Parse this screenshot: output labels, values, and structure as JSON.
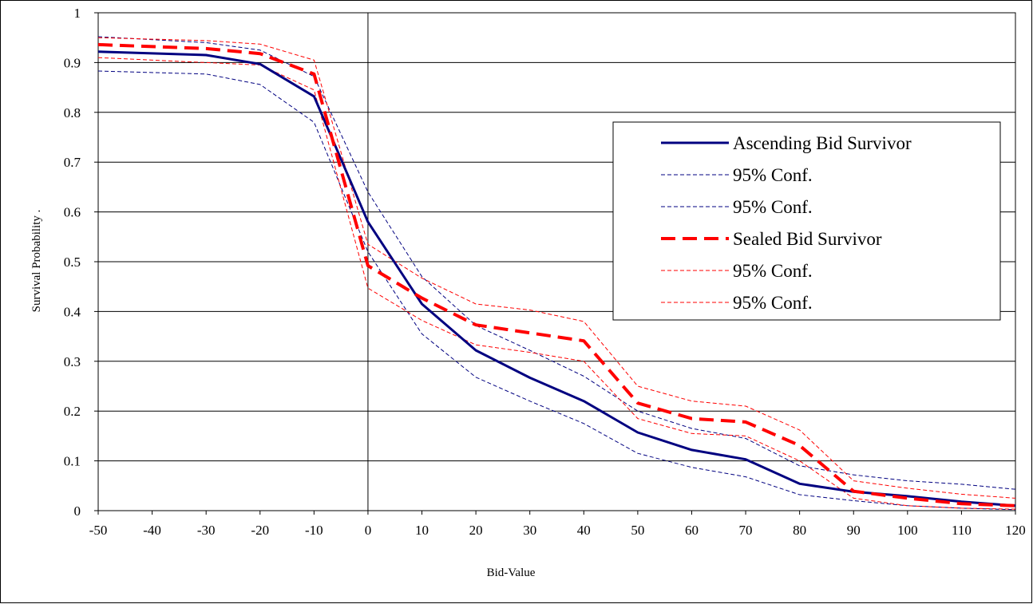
{
  "chart_data": {
    "type": "line",
    "xlabel": "Bid-Value",
    "ylabel": "Survival Probability     .",
    "xlim": [
      -50,
      120
    ],
    "ylim": [
      0,
      1
    ],
    "x_ticks": [
      "-50",
      "-40",
      "-30",
      "-20",
      "-10",
      "0",
      "10",
      "20",
      "30",
      "40",
      "50",
      "60",
      "70",
      "80",
      "90",
      "100",
      "110",
      "120"
    ],
    "y_ticks": [
      "0",
      "0.1",
      "0.2",
      "0.3",
      "0.4",
      "0.5",
      "0.6",
      "0.7",
      "0.8",
      "0.9",
      "1"
    ],
    "grid": "horizontal",
    "legend_placement": "right",
    "x": [
      -50,
      -30,
      -20,
      -10,
      0,
      10,
      20,
      30,
      40,
      50,
      60,
      70,
      80,
      90,
      100,
      110,
      120
    ],
    "series": [
      {
        "name": "Ascending Bid Survivor",
        "color": "#000080",
        "style": "solid",
        "values": [
          0.922,
          0.915,
          0.897,
          0.832,
          0.58,
          0.415,
          0.322,
          0.267,
          0.22,
          0.157,
          0.122,
          0.103,
          0.054,
          0.038,
          0.029,
          0.018,
          0.01
        ]
      },
      {
        "name": "95% Conf.",
        "color": "#000080",
        "style": "thin-dash",
        "values": [
          0.952,
          0.94,
          0.925,
          0.872,
          0.64,
          0.47,
          0.372,
          0.322,
          0.27,
          0.2,
          0.165,
          0.145,
          0.09,
          0.072,
          0.06,
          0.053,
          0.043
        ]
      },
      {
        "name": "95% Conf.",
        "color": "#000080",
        "style": "thin-dash",
        "values": [
          0.883,
          0.877,
          0.856,
          0.78,
          0.52,
          0.355,
          0.268,
          0.22,
          0.175,
          0.115,
          0.087,
          0.068,
          0.032,
          0.02,
          0.01,
          0.005,
          0.002
        ]
      },
      {
        "name": "Sealed Bid Survivor",
        "color": "#ff0000",
        "style": "dash",
        "values": [
          0.936,
          0.928,
          0.918,
          0.877,
          0.492,
          0.427,
          0.373,
          0.357,
          0.341,
          0.216,
          0.185,
          0.178,
          0.131,
          0.039,
          0.025,
          0.014,
          0.01
        ]
      },
      {
        "name": "95% Conf.",
        "color": "#ff0000",
        "style": "thin-dash",
        "values": [
          0.95,
          0.944,
          0.937,
          0.905,
          0.535,
          0.467,
          0.415,
          0.403,
          0.38,
          0.25,
          0.22,
          0.21,
          0.162,
          0.06,
          0.045,
          0.033,
          0.025
        ]
      },
      {
        "name": "95% Conf.",
        "color": "#ff0000",
        "style": "thin-dash",
        "values": [
          0.91,
          0.9,
          0.895,
          0.845,
          0.447,
          0.382,
          0.333,
          0.318,
          0.3,
          0.185,
          0.155,
          0.15,
          0.1,
          0.025,
          0.01,
          0.005,
          0.003
        ]
      }
    ]
  }
}
